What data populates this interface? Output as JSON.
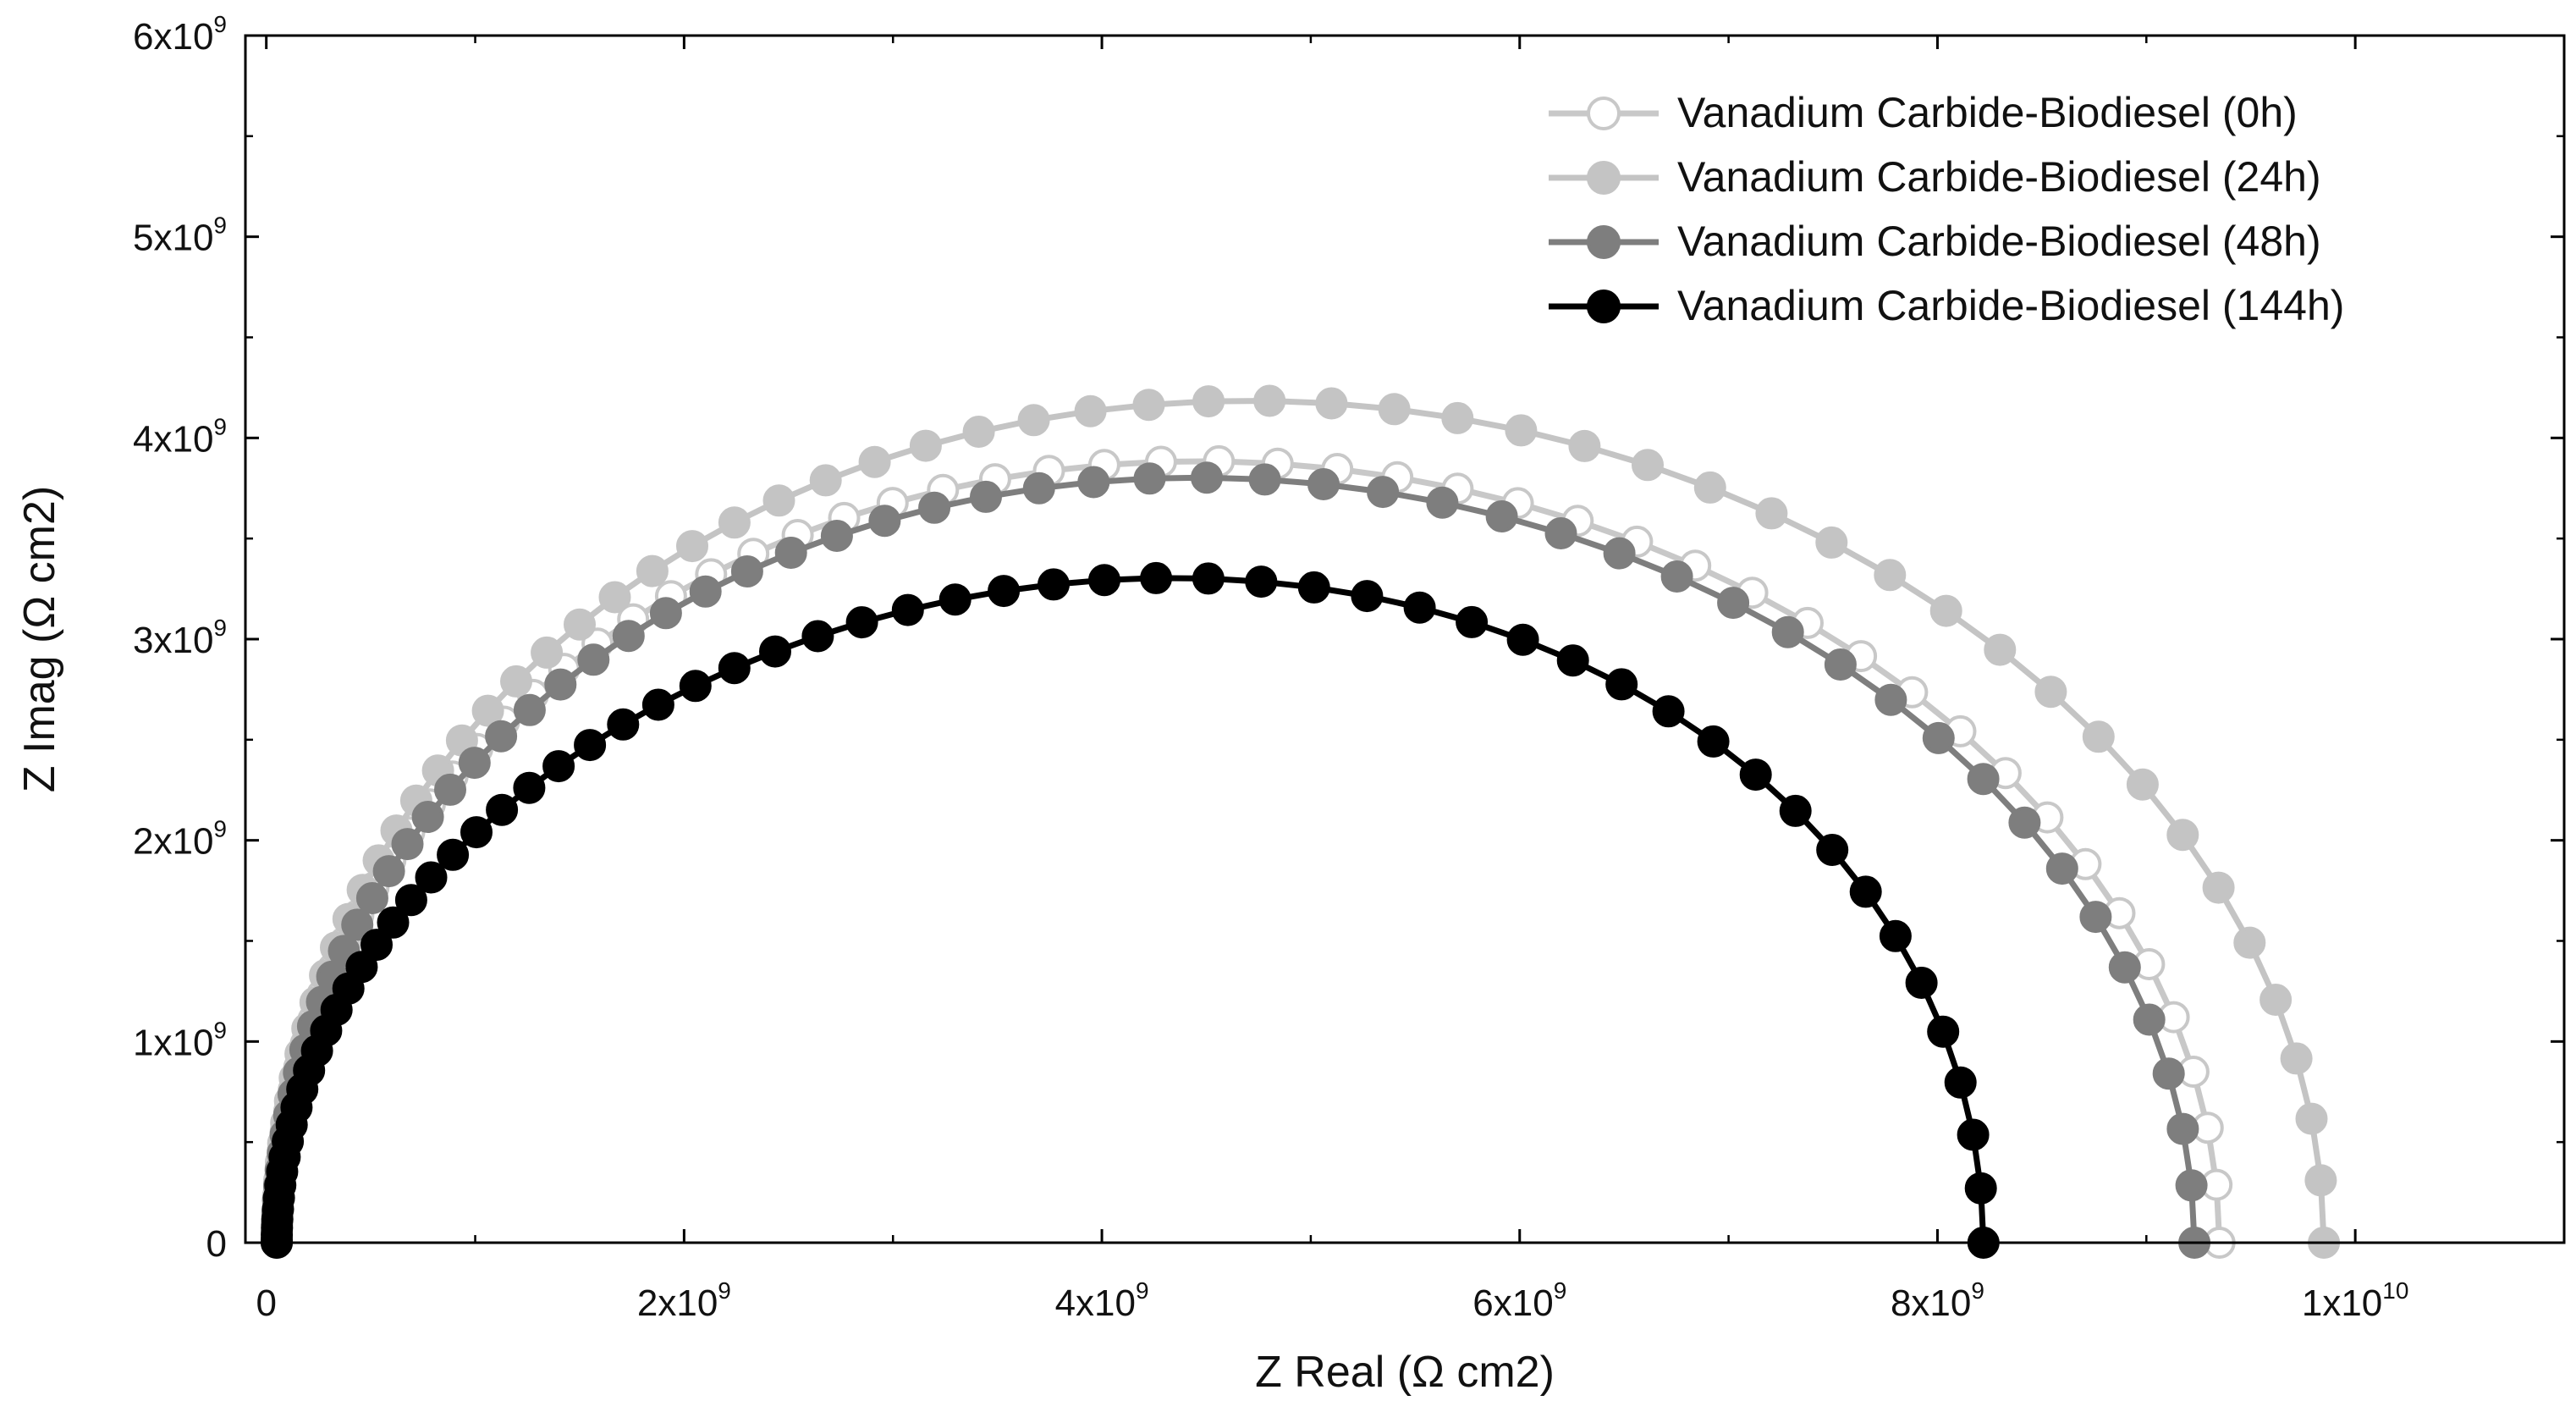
{
  "chart_data": {
    "type": "scatter",
    "title": "",
    "xlabel": "Z Real (Ω cm2)",
    "ylabel": "Z Imag (Ω cm2)",
    "xlim": [
      -100000000.0,
      11000000000.0
    ],
    "ylim": [
      0,
      6000000000.0
    ],
    "xticks": [
      {
        "value": 0,
        "label": "0",
        "exp": ""
      },
      {
        "value": 2000000000.0,
        "label": "2x10",
        "exp": "9"
      },
      {
        "value": 4000000000.0,
        "label": "4x10",
        "exp": "9"
      },
      {
        "value": 6000000000.0,
        "label": "6x10",
        "exp": "9"
      },
      {
        "value": 8000000000.0,
        "label": "8x10",
        "exp": "9"
      },
      {
        "value": 10000000000.0,
        "label": "1x10",
        "exp": "10"
      }
    ],
    "yticks": [
      {
        "value": 0,
        "label": "0",
        "exp": ""
      },
      {
        "value": 1000000000.0,
        "label": "1x10",
        "exp": "9"
      },
      {
        "value": 2000000000.0,
        "label": "2x10",
        "exp": "9"
      },
      {
        "value": 3000000000.0,
        "label": "3x10",
        "exp": "9"
      },
      {
        "value": 4000000000.0,
        "label": "4x10",
        "exp": "9"
      },
      {
        "value": 5000000000.0,
        "label": "5x10",
        "exp": "9"
      },
      {
        "value": 6000000000.0,
        "label": "6x10",
        "exp": "9"
      }
    ],
    "grid": false,
    "legend_position": "top-right",
    "series": [
      {
        "name": "Vanadium Carbide-Biodiesel (0h)",
        "line_color": "#c8c8c8",
        "marker_fill": "#ffffff",
        "marker_stroke": "#c8c8c8",
        "marker": "open-circle",
        "diameter": 9350000000.0,
        "center": 4725000000.0,
        "peak": 3880000000.0,
        "skew": 0.05,
        "start": 50000000.0
      },
      {
        "name": "Vanadium Carbide-Biodiesel (24h)",
        "line_color": "#c4c4c4",
        "marker_fill": "#c4c4c4",
        "marker_stroke": "#c4c4c4",
        "marker": "filled-circle",
        "diameter": 9850000000.0,
        "center": 4975000000.0,
        "peak": 4180000000.0,
        "skew": 0.05,
        "start": 50000000.0
      },
      {
        "name": "Vanadium Carbide-Biodiesel (48h)",
        "line_color": "#7e7e7e",
        "marker_fill": "#7e7e7e",
        "marker_stroke": "#7e7e7e",
        "marker": "filled-circle",
        "diameter": 9230000000.0,
        "center": 4665000000.0,
        "peak": 3800000000.0,
        "skew": 0.04,
        "start": 50000000.0
      },
      {
        "name": "Vanadium Carbide-Biodiesel (144h)",
        "line_color": "#000000",
        "marker_fill": "#000000",
        "marker_stroke": "#000000",
        "marker": "filled-circle",
        "diameter": 8220000000.0,
        "center": 4160000000.0,
        "peak": 3300000000.0,
        "skew": -0.05,
        "start": 50000000.0
      }
    ]
  }
}
